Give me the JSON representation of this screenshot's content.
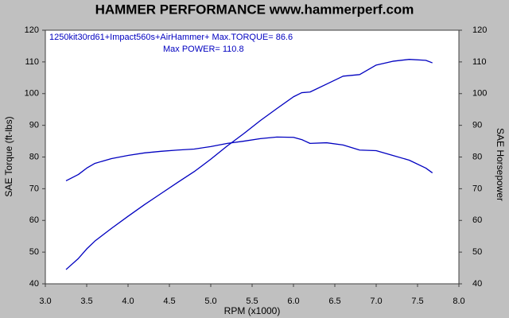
{
  "chart_data": {
    "type": "line",
    "title": "HAMMER PERFORMANCE www.hammerperf.com",
    "xlabel": "RPM (x1000)",
    "ylabel": "SAE Torque (ft-lbs)",
    "y2label": "SAE Horsepower",
    "annotations": [
      "1250kit30rd61+Impact560s+AirHammer+  Max.TORQUE= 86.6",
      "Max POWER= 110.8"
    ],
    "x": [
      3.25,
      3.4,
      3.5,
      3.6,
      3.8,
      4.0,
      4.2,
      4.4,
      4.6,
      4.8,
      5.0,
      5.2,
      5.4,
      5.6,
      5.8,
      6.0,
      6.1,
      6.2,
      6.4,
      6.6,
      6.8,
      7.0,
      7.2,
      7.4,
      7.6,
      7.68
    ],
    "series": [
      {
        "color": "#0000c0",
        "axis": "y",
        "values": [
          72.5,
          74.5,
          76.5,
          78,
          79.5,
          80.5,
          81.3,
          81.8,
          82.2,
          82.5,
          83.3,
          84.3,
          85,
          85.8,
          86.3,
          86.2,
          85.5,
          84.3,
          84.5,
          83.8,
          82.2,
          82,
          80.5,
          79,
          76.5,
          75
        ]
      },
      {
        "color": "#0000c0",
        "axis": "y2",
        "values": [
          44.5,
          48,
          51,
          53.5,
          57.5,
          61.3,
          65,
          68.5,
          72,
          75.4,
          79.3,
          83.5,
          87.4,
          91.5,
          95.3,
          99,
          100.3,
          100.5,
          103,
          105.5,
          106,
          109,
          110.2,
          110.8,
          110.5,
          109.7
        ]
      }
    ],
    "xlim": [
      3,
      8
    ],
    "xticks": [
      {
        "value": 3,
        "label": "3.0"
      },
      3.5,
      {
        "value": 4,
        "label": "4.0"
      },
      4.5,
      {
        "value": 5,
        "label": "5.0"
      },
      5.5,
      {
        "value": 6,
        "label": "6.0"
      },
      6.5,
      {
        "value": 7,
        "label": "7.0"
      },
      7.5,
      {
        "value": 8,
        "label": "8.0"
      }
    ],
    "ylim": [
      40,
      120
    ],
    "yticks": [
      40,
      50,
      60,
      70,
      80,
      90,
      100,
      110,
      120
    ],
    "y2lim": [
      40,
      120
    ],
    "y2ticks": [
      40,
      50,
      60,
      70,
      80,
      90,
      100,
      110,
      120
    ],
    "grid": false
  }
}
